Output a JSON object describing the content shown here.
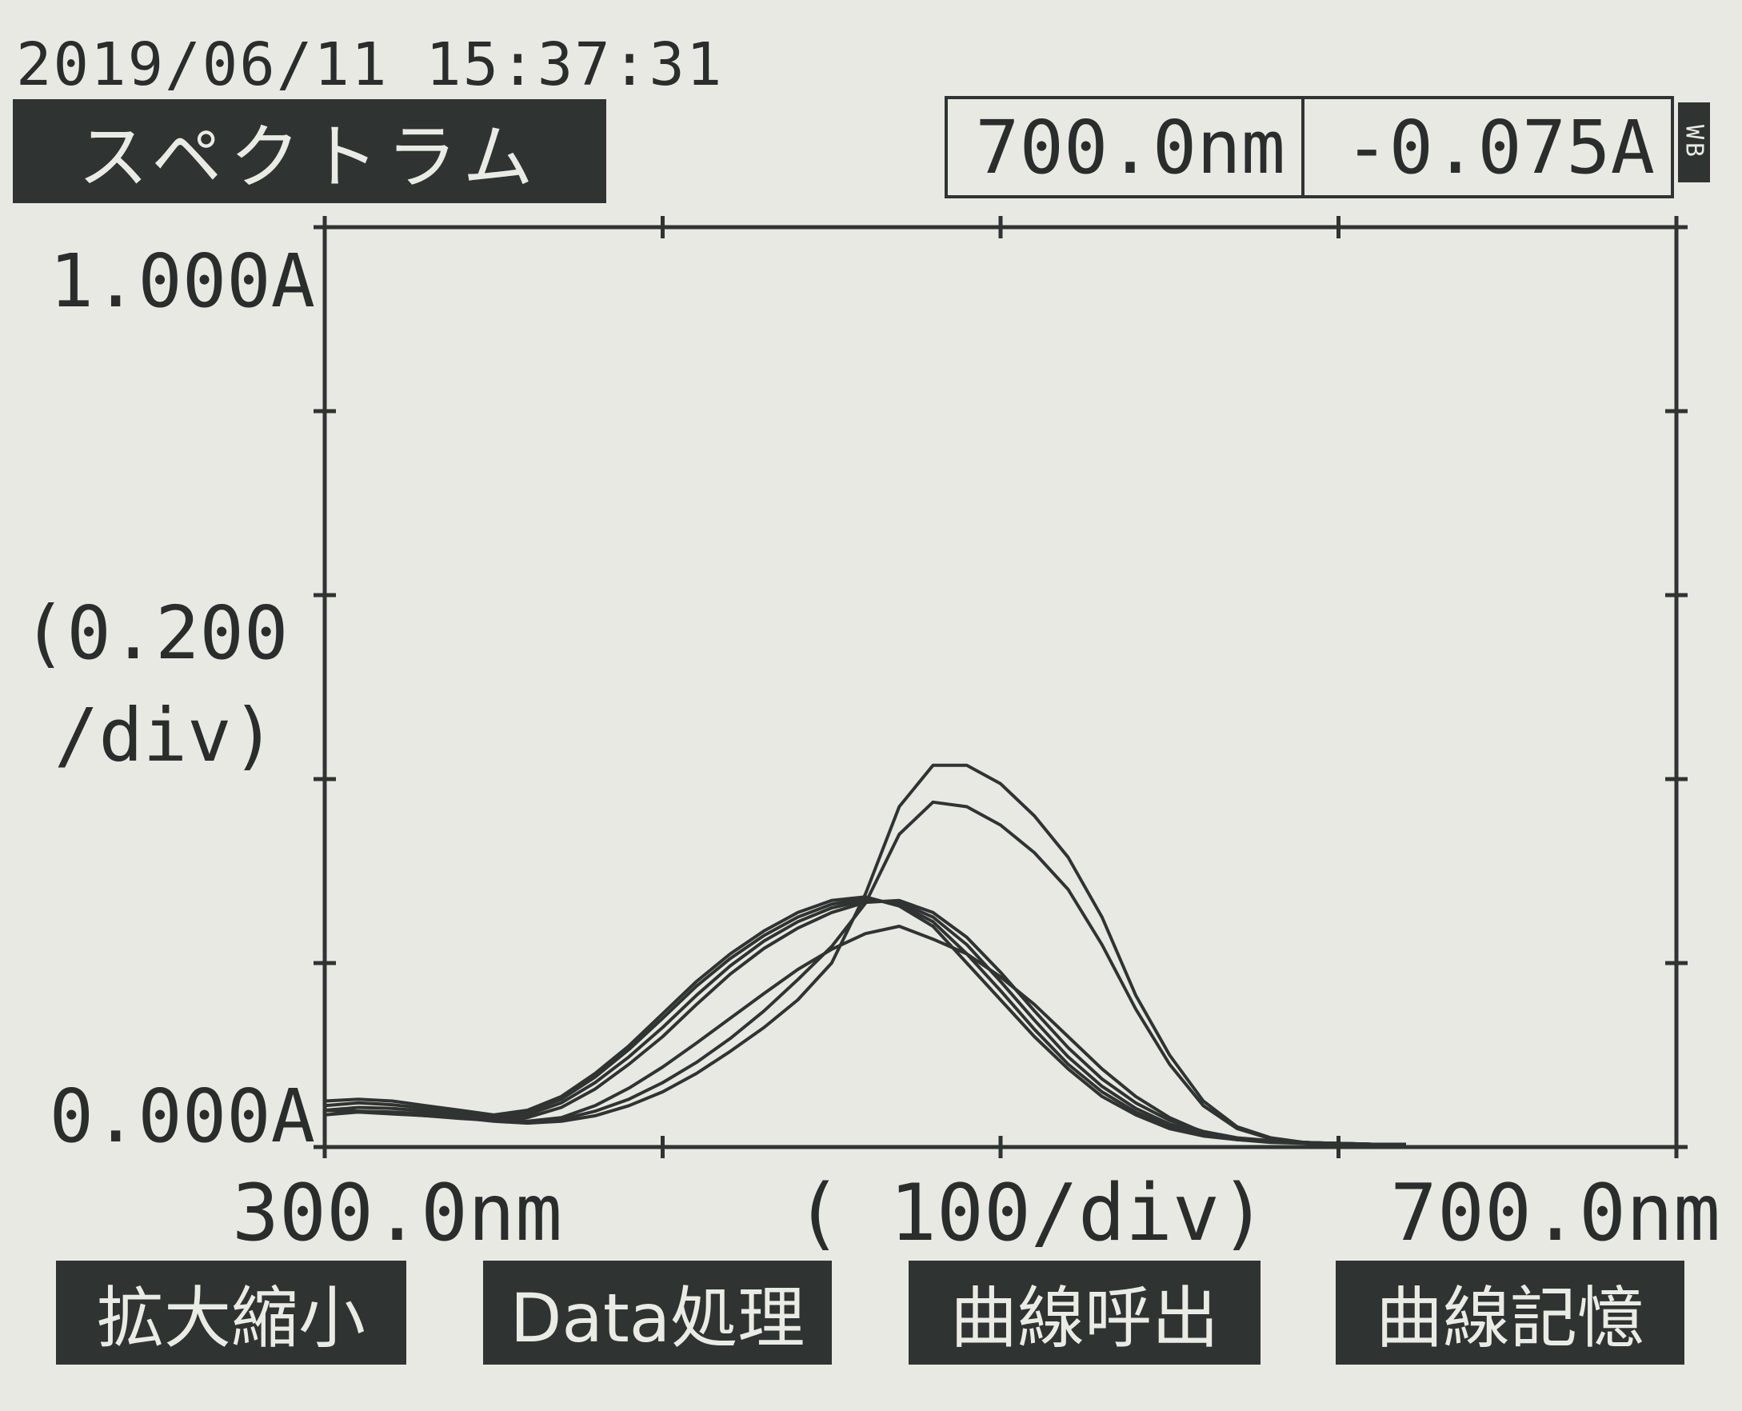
{
  "header": {
    "timestamp": "2019/06/11 15:37:31",
    "mode_title": "スペクトラム",
    "cursor_wavelength": "700.0nm",
    "cursor_absorbance": "-0.075A",
    "mode_tab": "WB"
  },
  "y_axis_labels": {
    "top": "1.000A",
    "bottom": "0.000A",
    "division": "(0.200",
    "division_unit": "/div)"
  },
  "x_axis_labels": {
    "left": "300.0nm",
    "center": "( 100/div)",
    "right": "700.0nm"
  },
  "softkeys": [
    "拡大縮小",
    "Data処理",
    "曲線呼出",
    "曲線記憶"
  ],
  "colors": {
    "screen": "#e9e9e4",
    "ink": "#2f3432"
  },
  "chart_data": {
    "type": "line",
    "xlim": [
      300,
      700
    ],
    "ylim": [
      0,
      1
    ],
    "grid": false,
    "x_ticks": [
      300,
      400,
      500,
      600,
      700
    ],
    "y_ticks": [
      0,
      0.2,
      0.4,
      0.6,
      0.8,
      1.0
    ],
    "series": [
      {
        "x": [
          300,
          310,
          320,
          330,
          340,
          350,
          360,
          370,
          380,
          390,
          400,
          410,
          420,
          430,
          440,
          450,
          460,
          470,
          480,
          490,
          500,
          510,
          520,
          530,
          540,
          550,
          560,
          570,
          580,
          590,
          600,
          610,
          620
        ],
        "values": [
          0.05,
          0.052,
          0.05,
          0.045,
          0.04,
          0.035,
          0.04,
          0.055,
          0.08,
          0.11,
          0.145,
          0.18,
          0.21,
          0.235,
          0.255,
          0.268,
          0.272,
          0.262,
          0.24,
          0.2,
          0.16,
          0.12,
          0.085,
          0.055,
          0.035,
          0.02,
          0.012,
          0.008,
          0.006,
          0.005,
          0.004,
          0.003,
          0.003
        ]
      },
      {
        "x": [
          300,
          310,
          320,
          330,
          340,
          350,
          360,
          370,
          380,
          390,
          400,
          410,
          420,
          430,
          440,
          450,
          460,
          470,
          480,
          490,
          500,
          510,
          520,
          530,
          540,
          550,
          560,
          570,
          580,
          590,
          600,
          610,
          620
        ],
        "values": [
          0.045,
          0.048,
          0.046,
          0.042,
          0.037,
          0.033,
          0.038,
          0.052,
          0.076,
          0.106,
          0.14,
          0.175,
          0.205,
          0.23,
          0.25,
          0.264,
          0.27,
          0.264,
          0.245,
          0.21,
          0.17,
          0.128,
          0.09,
          0.06,
          0.038,
          0.022,
          0.013,
          0.008,
          0.006,
          0.005,
          0.004,
          0.003,
          0.003
        ]
      },
      {
        "x": [
          300,
          310,
          320,
          330,
          340,
          350,
          360,
          370,
          380,
          390,
          400,
          410,
          420,
          430,
          440,
          450,
          460,
          470,
          480,
          490,
          500,
          510,
          520,
          530,
          540,
          550,
          560,
          570,
          580,
          590,
          600,
          610,
          620
        ],
        "values": [
          0.04,
          0.043,
          0.042,
          0.039,
          0.035,
          0.031,
          0.035,
          0.048,
          0.07,
          0.098,
          0.13,
          0.165,
          0.197,
          0.224,
          0.245,
          0.26,
          0.268,
          0.266,
          0.25,
          0.22,
          0.18,
          0.138,
          0.098,
          0.066,
          0.042,
          0.025,
          0.015,
          0.009,
          0.006,
          0.005,
          0.004,
          0.003,
          0.003
        ]
      },
      {
        "x": [
          300,
          310,
          320,
          330,
          340,
          350,
          360,
          370,
          380,
          390,
          400,
          410,
          420,
          430,
          440,
          450,
          460,
          470,
          480,
          490,
          500,
          510,
          520,
          530,
          540,
          550,
          560,
          570,
          580,
          590,
          600,
          610,
          620
        ],
        "values": [
          0.035,
          0.038,
          0.037,
          0.034,
          0.031,
          0.029,
          0.032,
          0.043,
          0.063,
          0.09,
          0.12,
          0.155,
          0.188,
          0.216,
          0.238,
          0.255,
          0.266,
          0.268,
          0.255,
          0.228,
          0.19,
          0.148,
          0.108,
          0.074,
          0.048,
          0.029,
          0.017,
          0.01,
          0.007,
          0.005,
          0.004,
          0.003,
          0.003
        ]
      },
      {
        "x": [
          300,
          320,
          340,
          350,
          360,
          370,
          380,
          390,
          400,
          410,
          420,
          430,
          440,
          450,
          460,
          470,
          480,
          490,
          500,
          510,
          520,
          530,
          540,
          550,
          560,
          570,
          580,
          590,
          600
        ],
        "values": [
          0.04,
          0.038,
          0.034,
          0.03,
          0.028,
          0.032,
          0.045,
          0.064,
          0.087,
          0.113,
          0.14,
          0.167,
          0.193,
          0.215,
          0.232,
          0.24,
          0.226,
          0.21,
          0.185,
          0.155,
          0.12,
          0.085,
          0.055,
          0.032,
          0.016,
          0.008,
          0.005,
          0.004,
          0.003
        ]
      },
      {
        "x": [
          300,
          320,
          340,
          350,
          360,
          370,
          380,
          390,
          400,
          410,
          420,
          430,
          440,
          450,
          460,
          470,
          480,
          490,
          500,
          510,
          520,
          530,
          540,
          550,
          560,
          570,
          580,
          590,
          600
        ],
        "values": [
          0.04,
          0.037,
          0.033,
          0.029,
          0.027,
          0.03,
          0.039,
          0.052,
          0.07,
          0.092,
          0.118,
          0.148,
          0.182,
          0.218,
          0.265,
          0.34,
          0.375,
          0.37,
          0.35,
          0.32,
          0.28,
          0.22,
          0.15,
          0.09,
          0.045,
          0.02,
          0.009,
          0.005,
          0.003
        ]
      },
      {
        "x": [
          300,
          320,
          340,
          350,
          360,
          370,
          380,
          390,
          400,
          410,
          420,
          430,
          440,
          450,
          460,
          470,
          480,
          490,
          500,
          510,
          520,
          530,
          540,
          550,
          560,
          570,
          580,
          590,
          600
        ],
        "values": [
          0.04,
          0.036,
          0.032,
          0.028,
          0.026,
          0.028,
          0.034,
          0.045,
          0.06,
          0.08,
          0.104,
          0.13,
          0.16,
          0.2,
          0.275,
          0.37,
          0.415,
          0.415,
          0.395,
          0.36,
          0.315,
          0.25,
          0.165,
          0.1,
          0.05,
          0.022,
          0.01,
          0.005,
          0.003
        ]
      }
    ]
  }
}
